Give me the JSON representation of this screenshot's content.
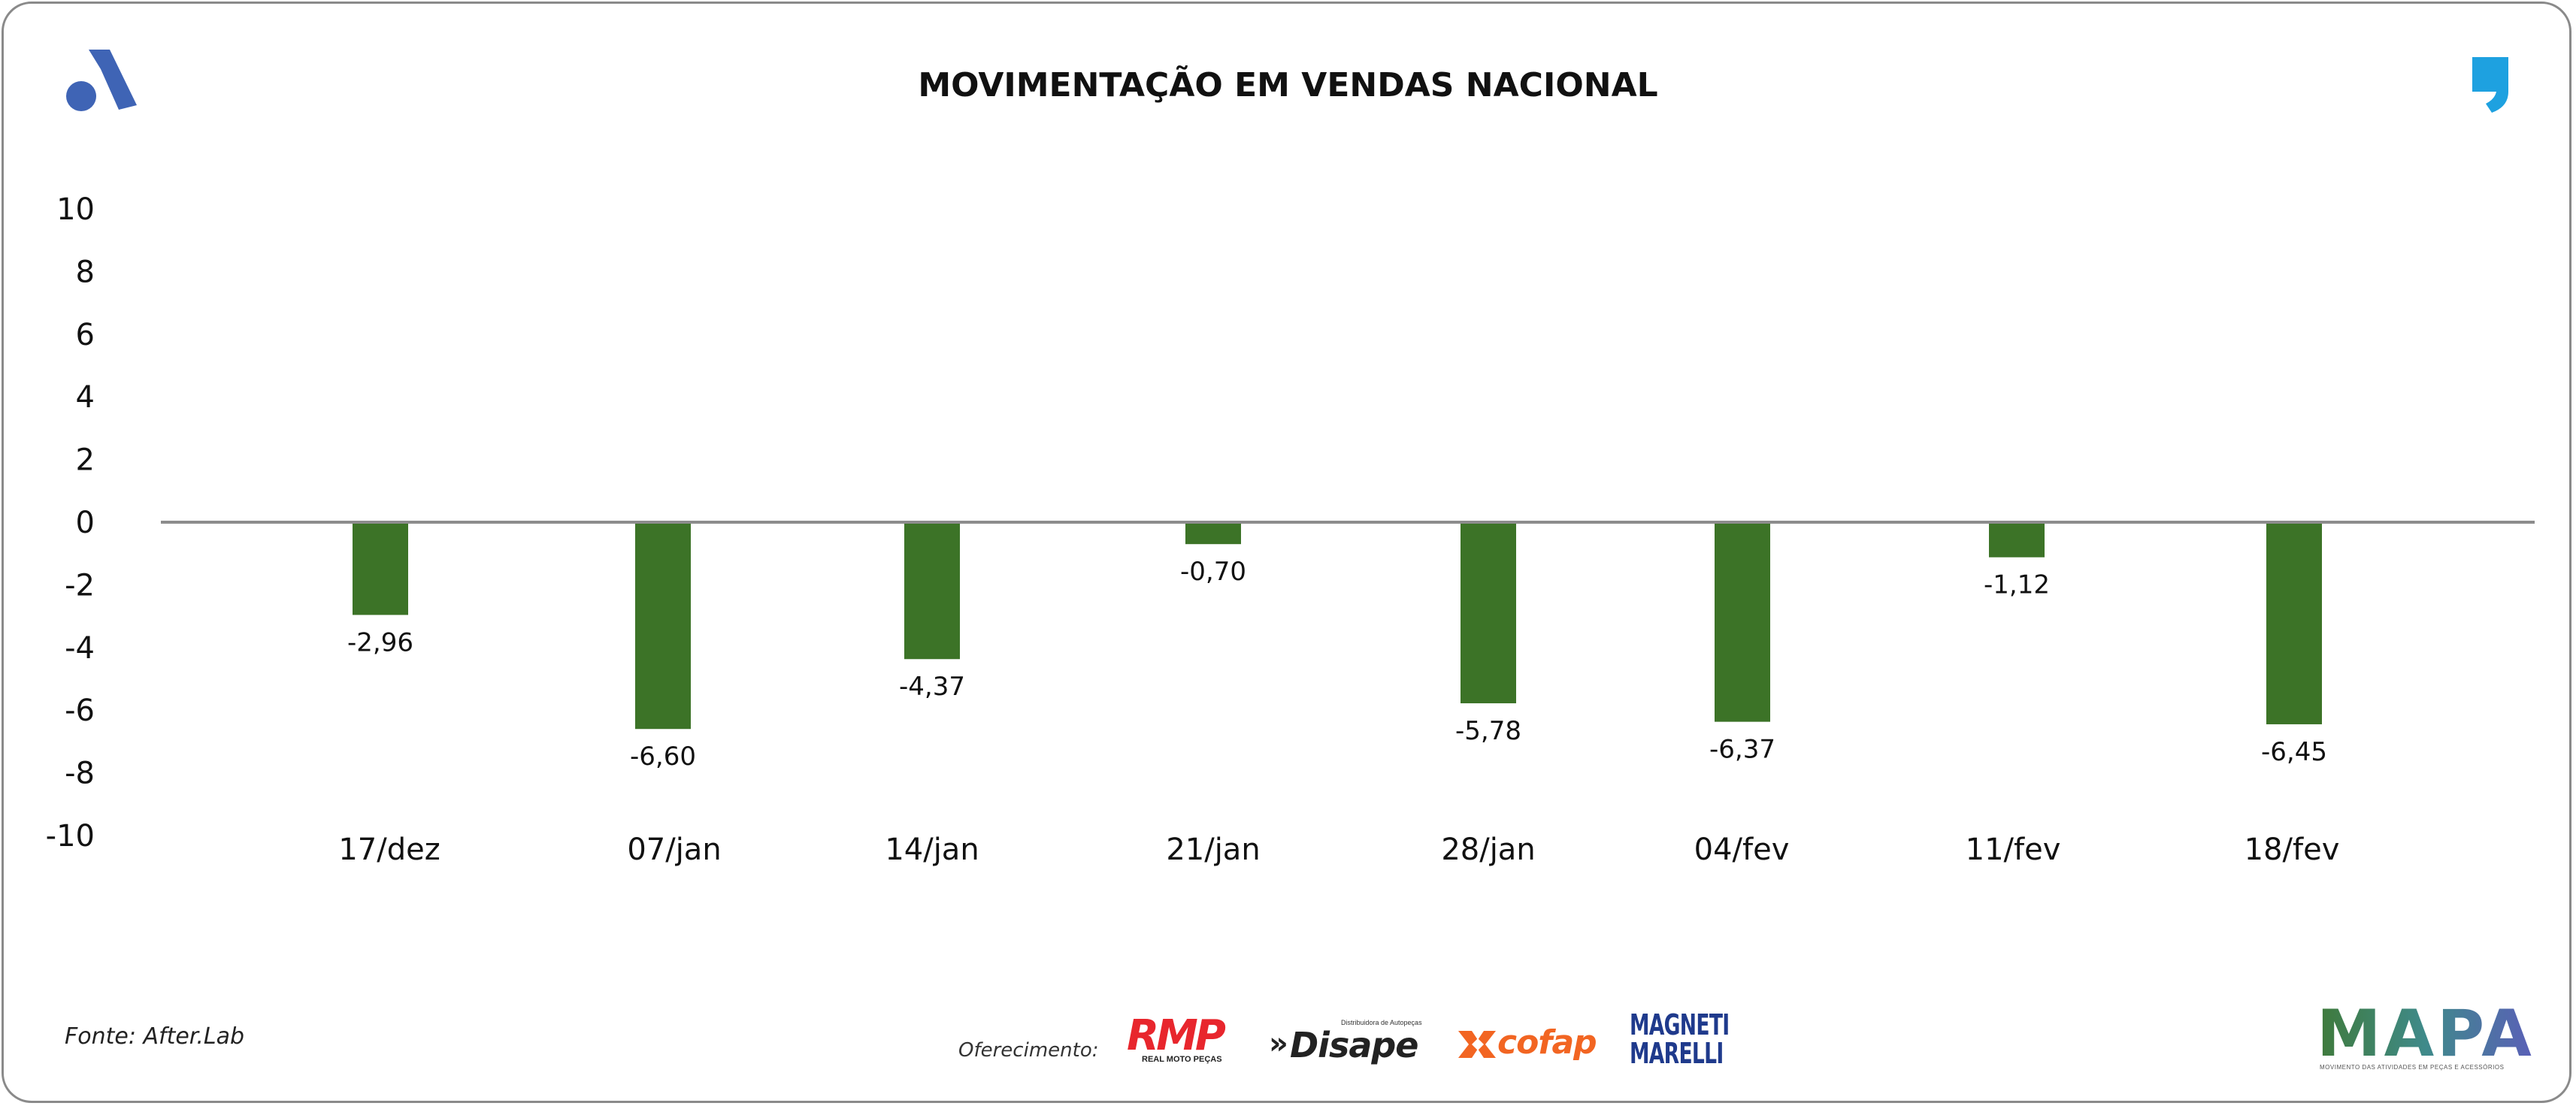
{
  "title": "MOVIMENTAÇÃO EM VENDAS NACIONAL",
  "chart_data": {
    "type": "bar",
    "title": "MOVIMENTAÇÃO EM VENDAS NACIONAL",
    "categories": [
      "17/dez",
      "07/jan",
      "14/jan",
      "21/jan",
      "28/jan",
      "04/fev",
      "11/fev",
      "18/fev"
    ],
    "values": [
      -2.96,
      -6.6,
      -4.37,
      -0.7,
      -5.78,
      -6.37,
      -1.12,
      -6.45
    ],
    "value_labels": [
      "-2,96",
      "-6,60",
      "-4,37",
      "-0,70",
      "-5,78",
      "-6,37",
      "-1,12",
      "-6,45"
    ],
    "y_ticks": [
      "10",
      "8",
      "6",
      "4",
      "2",
      "0",
      "-2",
      "-4",
      "-6",
      "-8",
      "-10"
    ],
    "ylim": [
      -10,
      10
    ],
    "xlabel": "",
    "ylabel": "",
    "grid": false,
    "legend": "none",
    "bar_color": "#3c7327",
    "zero_line_color": "#8c8c8c"
  },
  "footer": {
    "source": "Fonte: After.Lab",
    "sponsor_label": "Oferecimento:"
  },
  "sponsors": {
    "rmp": "RMP",
    "rmp_sub": "REAL MOTO PEÇAS",
    "disape": "Disape",
    "disape_sub": "Distribuidora de Autopeças",
    "cofap": "cofap",
    "magneti_1": "MAGNETI",
    "magneti_2": "MARELLI",
    "mapa": "MAPA",
    "mapa_sub": "MOVIMENTO DAS ATIVIDADES EM PEÇAS E ACESSÓRIOS"
  },
  "colors": {
    "brand_blue": "#3f64b5",
    "quote_blue": "#1ea1e0",
    "rmp_red": "#e8262d",
    "cofap_orange": "#f26522",
    "magneti_blue": "#1f3a8c"
  },
  "icons": {
    "top_left": "aftermarket-a-logo-icon",
    "top_right": "quote-comma-icon"
  }
}
